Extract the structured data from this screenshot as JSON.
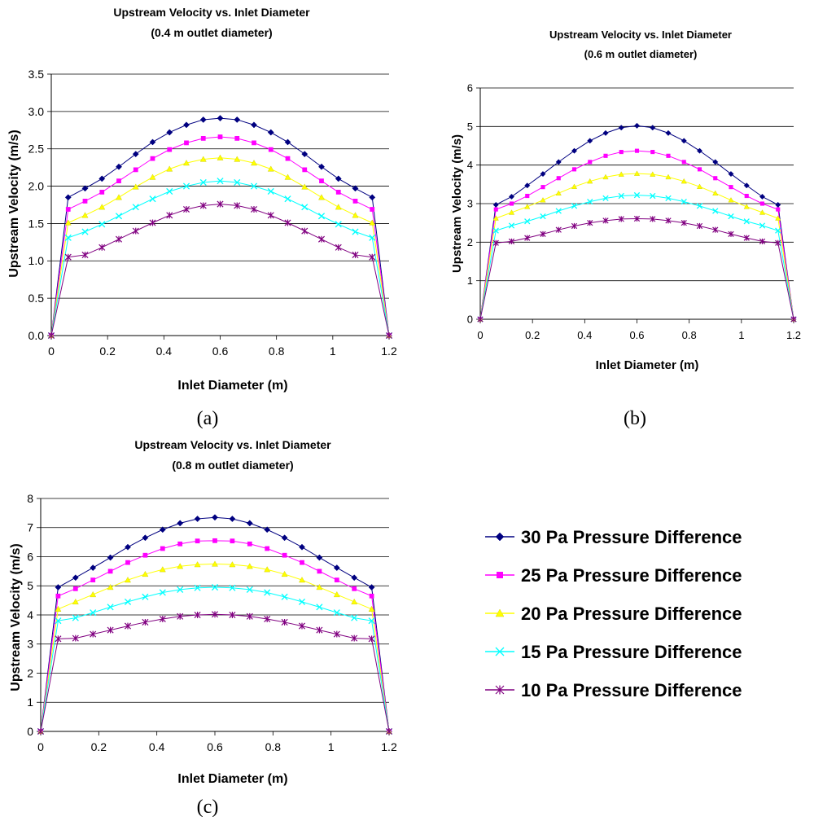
{
  "chart_data": [
    {
      "type": "line",
      "panel_label": "(a)",
      "title": "Upstream Velocity vs. Inlet Diameter",
      "subtitle": "(0.4 m outlet diameter)",
      "xlabel": "Inlet Diameter (m)",
      "ylabel": "Upstream Velocity (m/s)",
      "xlim": [
        0,
        1.2
      ],
      "ylim": [
        0,
        3.5
      ],
      "x_ticks": [
        0,
        0.2,
        0.4,
        0.6,
        0.8,
        1,
        1.2
      ],
      "x_tick_labels": [
        "0",
        "0.2",
        "0.4",
        "0.6",
        "0.8",
        "1",
        "1.2"
      ],
      "y_ticks": [
        0,
        0.5,
        1.0,
        1.5,
        2.0,
        2.5,
        3.0,
        3.5
      ],
      "y_tick_labels": [
        "0.0",
        "0.5",
        "1.0",
        "1.5",
        "2.0",
        "2.5",
        "3.0",
        "3.5"
      ],
      "grid": true,
      "x": [
        0,
        0.06,
        0.12,
        0.18,
        0.24,
        0.3,
        0.36,
        0.42,
        0.48,
        0.54,
        0.6,
        0.66,
        0.72,
        0.78,
        0.84,
        0.9,
        0.96,
        1.02,
        1.08,
        1.14,
        1.2
      ],
      "series": [
        {
          "name": "30 Pa Pressure Difference",
          "values": [
            0,
            1.85,
            1.97,
            2.1,
            2.26,
            2.43,
            2.59,
            2.72,
            2.82,
            2.89,
            2.91,
            2.89,
            2.82,
            2.72,
            2.59,
            2.43,
            2.26,
            2.1,
            1.97,
            1.85,
            0
          ]
        },
        {
          "name": "25 Pa Pressure Difference",
          "values": [
            0,
            1.69,
            1.8,
            1.92,
            2.07,
            2.22,
            2.37,
            2.49,
            2.58,
            2.64,
            2.66,
            2.64,
            2.58,
            2.49,
            2.37,
            2.22,
            2.07,
            1.92,
            1.8,
            1.69,
            0
          ]
        },
        {
          "name": "20 Pa Pressure Difference",
          "values": [
            0,
            1.51,
            1.61,
            1.72,
            1.85,
            1.99,
            2.12,
            2.23,
            2.31,
            2.36,
            2.38,
            2.36,
            2.31,
            2.23,
            2.12,
            1.99,
            1.85,
            1.72,
            1.61,
            1.51,
            0
          ]
        },
        {
          "name": "15 Pa Pressure Difference",
          "values": [
            0,
            1.31,
            1.39,
            1.49,
            1.6,
            1.72,
            1.83,
            1.93,
            2.0,
            2.05,
            2.07,
            2.05,
            2.0,
            1.93,
            1.83,
            1.72,
            1.6,
            1.49,
            1.39,
            1.31,
            0
          ]
        },
        {
          "name": "10 Pa Pressure Difference",
          "values": [
            0,
            1.05,
            1.08,
            1.18,
            1.29,
            1.4,
            1.51,
            1.61,
            1.69,
            1.74,
            1.76,
            1.74,
            1.69,
            1.61,
            1.51,
            1.4,
            1.29,
            1.18,
            1.08,
            1.05,
            0
          ]
        }
      ]
    },
    {
      "type": "line",
      "panel_label": "(b)",
      "title": "Upstream Velocity vs. Inlet Diameter",
      "subtitle": "(0.6 m outlet diameter)",
      "xlabel": "Inlet Diameter (m)",
      "ylabel": "Upstream Velocity (m/s)",
      "xlim": [
        0,
        1.2
      ],
      "ylim": [
        0,
        6
      ],
      "x_ticks": [
        0,
        0.2,
        0.4,
        0.6,
        0.8,
        1,
        1.2
      ],
      "x_tick_labels": [
        "0",
        "0.2",
        "0.4",
        "0.6",
        "0.8",
        "1",
        "1.2"
      ],
      "y_ticks": [
        0,
        1,
        2,
        3,
        4,
        5,
        6
      ],
      "y_tick_labels": [
        "0",
        "1",
        "2",
        "3",
        "4",
        "5",
        "6"
      ],
      "grid": true,
      "x": [
        0,
        0.06,
        0.12,
        0.18,
        0.24,
        0.3,
        0.36,
        0.42,
        0.48,
        0.54,
        0.6,
        0.66,
        0.72,
        0.78,
        0.84,
        0.9,
        0.96,
        1.02,
        1.08,
        1.14,
        1.2
      ],
      "series": [
        {
          "name": "30 Pa Pressure Difference",
          "values": [
            0,
            2.97,
            3.18,
            3.47,
            3.77,
            4.08,
            4.37,
            4.63,
            4.83,
            4.97,
            5.02,
            4.97,
            4.83,
            4.63,
            4.37,
            4.08,
            3.77,
            3.47,
            3.18,
            2.97,
            0
          ]
        },
        {
          "name": "25 Pa Pressure Difference",
          "values": [
            0,
            2.85,
            3.0,
            3.2,
            3.43,
            3.66,
            3.89,
            4.08,
            4.24,
            4.34,
            4.37,
            4.34,
            4.24,
            4.08,
            3.89,
            3.66,
            3.43,
            3.2,
            3.0,
            2.85,
            0
          ]
        },
        {
          "name": "20 Pa Pressure Difference",
          "values": [
            0,
            2.62,
            2.77,
            2.92,
            3.09,
            3.27,
            3.44,
            3.58,
            3.69,
            3.76,
            3.78,
            3.76,
            3.69,
            3.58,
            3.44,
            3.27,
            3.09,
            2.92,
            2.77,
            2.62,
            0
          ]
        },
        {
          "name": "15 Pa Pressure Difference",
          "values": [
            0,
            2.3,
            2.43,
            2.54,
            2.67,
            2.81,
            2.94,
            3.05,
            3.14,
            3.2,
            3.22,
            3.2,
            3.14,
            3.05,
            2.94,
            2.81,
            2.67,
            2.54,
            2.43,
            2.3,
            0
          ]
        },
        {
          "name": "10 Pa Pressure Difference",
          "values": [
            0,
            1.98,
            2.02,
            2.11,
            2.21,
            2.32,
            2.42,
            2.5,
            2.56,
            2.6,
            2.61,
            2.6,
            2.56,
            2.5,
            2.42,
            2.32,
            2.21,
            2.11,
            2.02,
            1.98,
            0
          ]
        }
      ]
    },
    {
      "type": "line",
      "panel_label": "(c)",
      "title": "Upstream Velocity vs. Inlet Diameter",
      "subtitle": "(0.8 m outlet diameter)",
      "xlabel": "Inlet Diameter (m)",
      "ylabel": "Upstream Velocity (m/s)",
      "xlim": [
        0,
        1.2
      ],
      "ylim": [
        0,
        8
      ],
      "x_ticks": [
        0,
        0.2,
        0.4,
        0.6,
        0.8,
        1,
        1.2
      ],
      "x_tick_labels": [
        "0",
        "0.2",
        "0.4",
        "0.6",
        "0.8",
        "1",
        "1.2"
      ],
      "y_ticks": [
        0,
        1,
        2,
        3,
        4,
        5,
        6,
        7,
        8
      ],
      "y_tick_labels": [
        "0",
        "1",
        "2",
        "3",
        "4",
        "5",
        "6",
        "7",
        "8"
      ],
      "grid": true,
      "x": [
        0,
        0.06,
        0.12,
        0.18,
        0.24,
        0.3,
        0.36,
        0.42,
        0.48,
        0.54,
        0.6,
        0.66,
        0.72,
        0.78,
        0.84,
        0.9,
        0.96,
        1.02,
        1.08,
        1.14,
        1.2
      ],
      "series": [
        {
          "name": "30 Pa Pressure Difference",
          "values": [
            0,
            4.95,
            5.28,
            5.62,
            5.97,
            6.33,
            6.65,
            6.93,
            7.15,
            7.3,
            7.35,
            7.3,
            7.15,
            6.93,
            6.65,
            6.33,
            5.97,
            5.62,
            5.28,
            4.95,
            0
          ]
        },
        {
          "name": "25 Pa Pressure Difference",
          "values": [
            0,
            4.65,
            4.9,
            5.2,
            5.5,
            5.8,
            6.05,
            6.28,
            6.44,
            6.54,
            6.55,
            6.54,
            6.44,
            6.28,
            6.05,
            5.8,
            5.5,
            5.2,
            4.9,
            4.65,
            0
          ]
        },
        {
          "name": "20 Pa Pressure Difference",
          "values": [
            0,
            4.2,
            4.45,
            4.7,
            4.95,
            5.2,
            5.4,
            5.56,
            5.67,
            5.73,
            5.75,
            5.73,
            5.67,
            5.56,
            5.4,
            5.2,
            4.95,
            4.7,
            4.45,
            4.2,
            0
          ]
        },
        {
          "name": "15 Pa Pressure Difference",
          "values": [
            0,
            3.8,
            3.9,
            4.08,
            4.27,
            4.45,
            4.62,
            4.77,
            4.87,
            4.93,
            4.95,
            4.93,
            4.87,
            4.77,
            4.62,
            4.45,
            4.27,
            4.08,
            3.9,
            3.8,
            0
          ]
        },
        {
          "name": "10 Pa Pressure Difference",
          "values": [
            0,
            3.18,
            3.2,
            3.34,
            3.48,
            3.62,
            3.75,
            3.86,
            3.95,
            4.0,
            4.02,
            4.0,
            3.95,
            3.86,
            3.75,
            3.62,
            3.48,
            3.34,
            3.2,
            3.18,
            0
          ]
        }
      ]
    }
  ],
  "legend": {
    "position": "right",
    "items": [
      {
        "label": "30 Pa Pressure Difference",
        "color": "#000080",
        "marker": "diamond"
      },
      {
        "label": "25 Pa Pressure Difference",
        "color": "#FF00FF",
        "marker": "square"
      },
      {
        "label": "20 Pa Pressure Difference",
        "color": "#FFFF00",
        "marker": "triangle"
      },
      {
        "label": "15 Pa Pressure Difference",
        "color": "#00FFFF",
        "marker": "x"
      },
      {
        "label": "10 Pa Pressure Difference",
        "color": "#800080",
        "marker": "star"
      }
    ]
  }
}
